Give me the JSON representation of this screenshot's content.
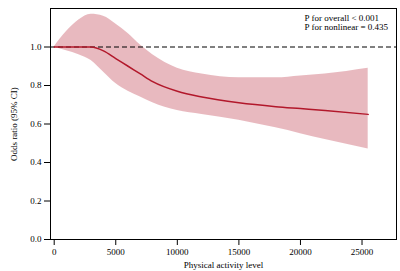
{
  "chart_data": {
    "type": "line",
    "x_label": "Physical activity level",
    "y_label": "Odds ratio (95% CI)",
    "annotations": [
      "P for overall < 0.001",
      "P for nonlinear = 0.435"
    ],
    "color": "#b2182b",
    "x": [
      0,
      1000,
      2000,
      3000,
      4000,
      5000,
      6000,
      7000,
      8000,
      10000,
      12000,
      15000,
      18000,
      20000,
      22000,
      25500
    ],
    "values": [
      1.0,
      1.0,
      1.0,
      1.0,
      0.98,
      0.94,
      0.9,
      0.86,
      0.82,
      0.77,
      0.74,
      0.71,
      0.69,
      0.68,
      0.67,
      0.65
    ],
    "lower": [
      1.0,
      0.98,
      0.96,
      0.93,
      0.87,
      0.81,
      0.77,
      0.74,
      0.71,
      0.67,
      0.65,
      0.62,
      0.58,
      0.55,
      0.52,
      0.47
    ],
    "upper": [
      1.0,
      1.08,
      1.14,
      1.17,
      1.16,
      1.12,
      1.07,
      1.01,
      0.96,
      0.89,
      0.86,
      0.84,
      0.84,
      0.85,
      0.86,
      0.89
    ],
    "reference_line": {
      "value": 1.0,
      "line_style": "dashed"
    },
    "xlim": [
      -300,
      27800
    ],
    "xticks": [
      0,
      5000,
      10000,
      15000,
      20000,
      25000
    ],
    "ylim": [
      0,
      1.2
    ],
    "yticks": [
      {
        "value": 0,
        "label": "0.0"
      },
      {
        "value": 0.2,
        "label": "0.2"
      },
      {
        "value": 0.4,
        "label": "0.4"
      },
      {
        "value": 0.6,
        "label": "0.6"
      },
      {
        "value": 0.8,
        "label": "0.8"
      },
      {
        "value": 1.0,
        "label": "1.0"
      }
    ],
    "grid": false
  }
}
